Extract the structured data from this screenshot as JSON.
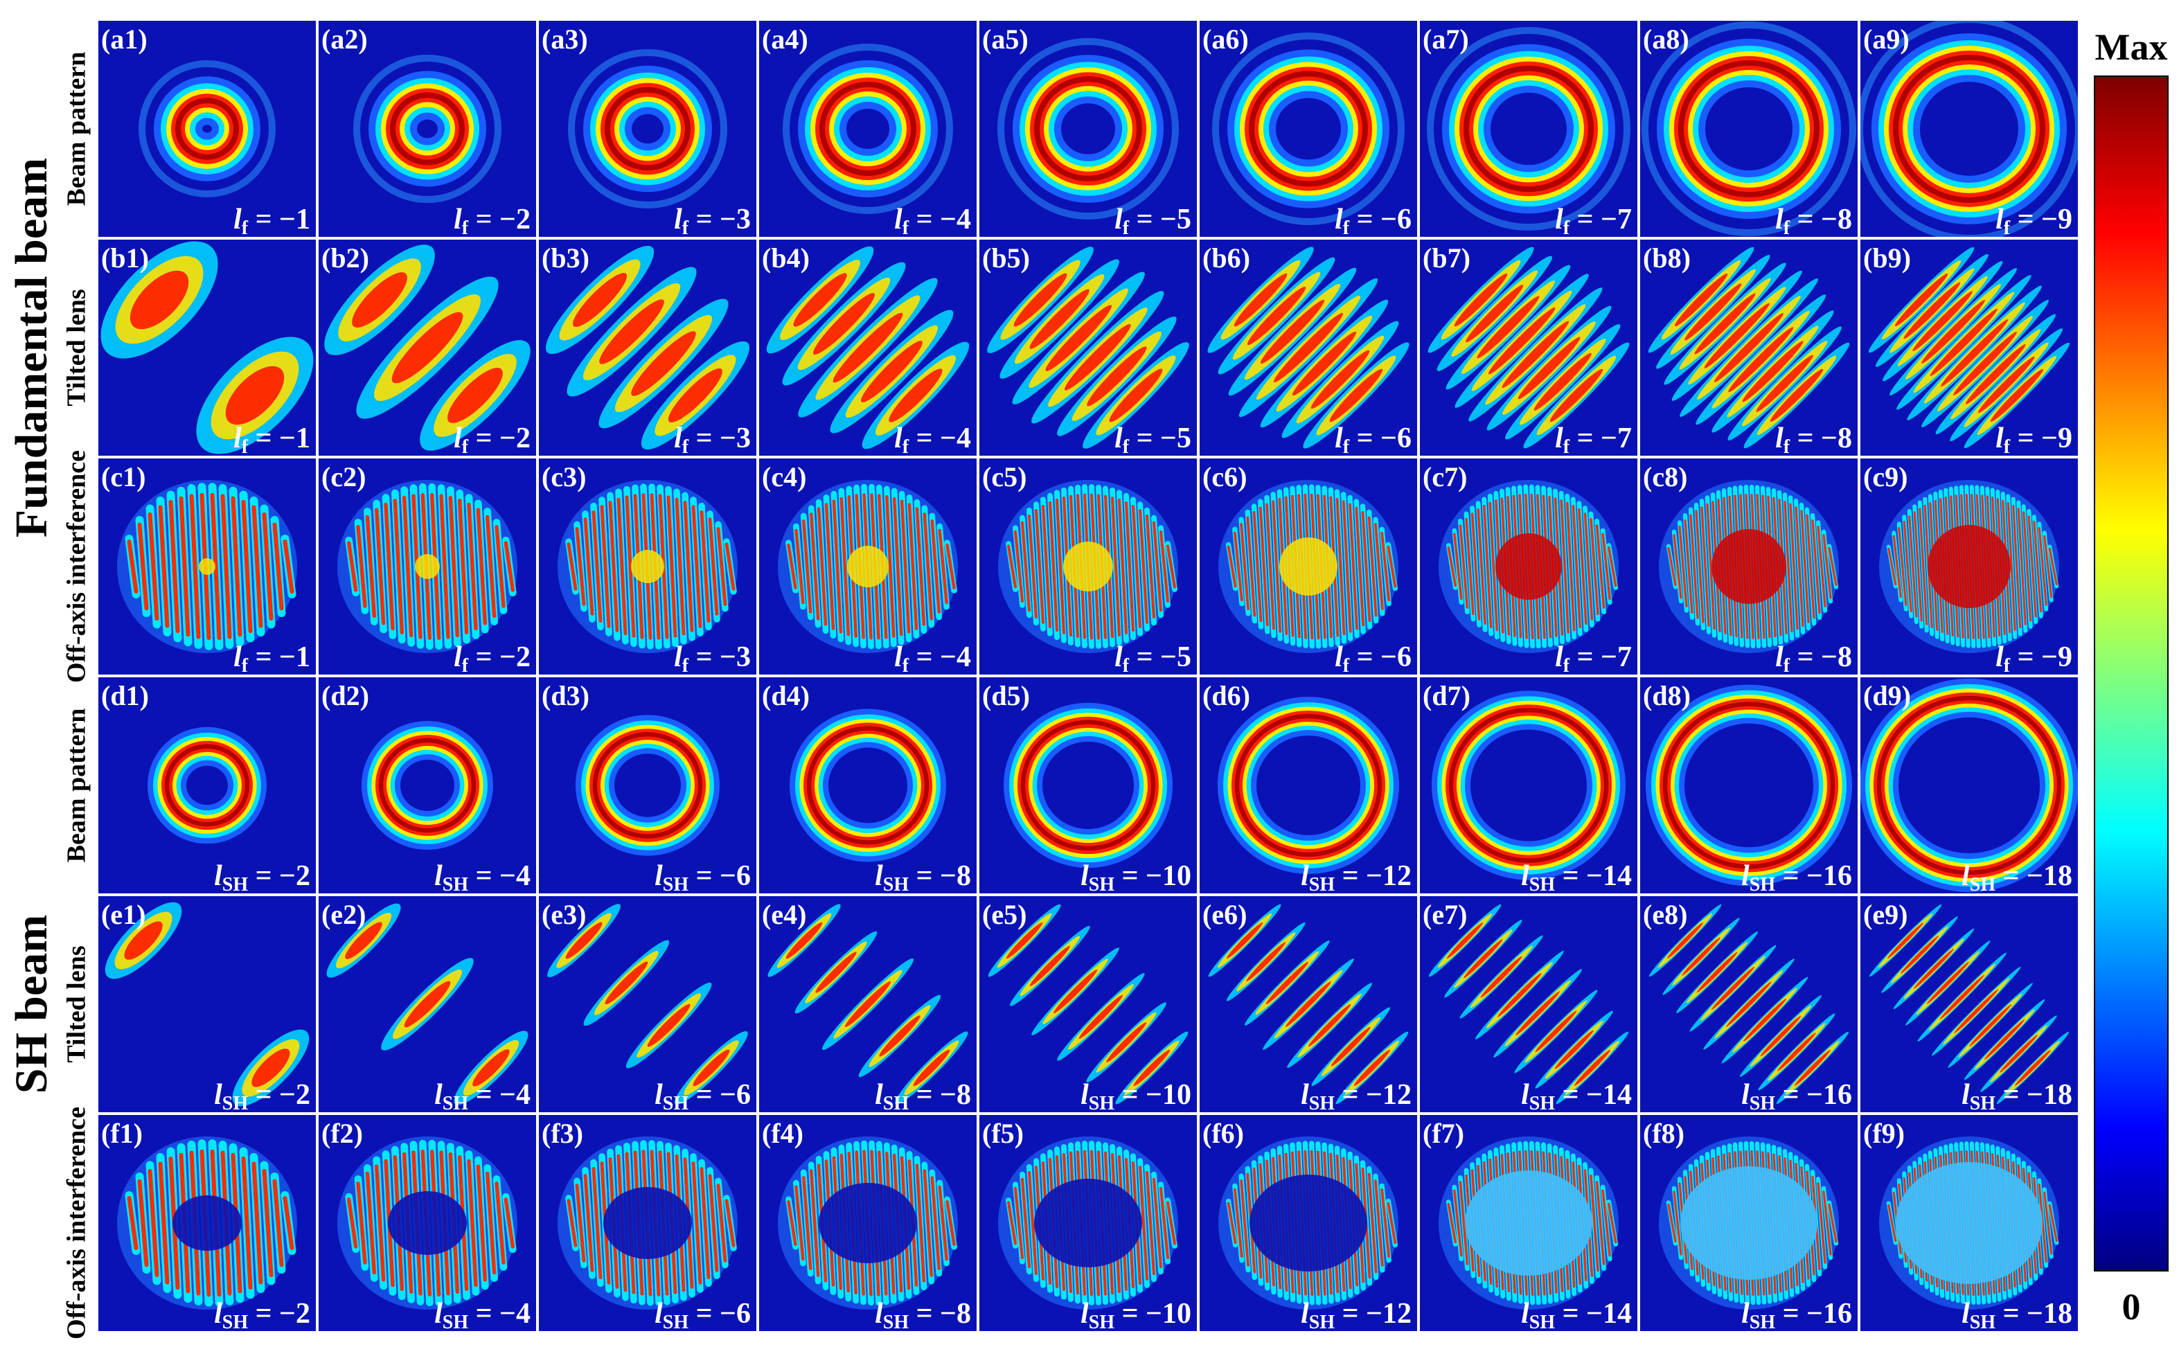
{
  "figure": {
    "groups": [
      {
        "title": "Fundamental beam",
        "rows": [
          {
            "label": "Beam pattern",
            "panels": [
              {
                "tag": "(a1)",
                "symbol": "l",
                "sub": "f",
                "eq": " = −1"
              },
              {
                "tag": "(a2)",
                "symbol": "l",
                "sub": "f",
                "eq": " = −2"
              },
              {
                "tag": "(a3)",
                "symbol": "l",
                "sub": "f",
                "eq": " = −3"
              },
              {
                "tag": "(a4)",
                "symbol": "l",
                "sub": "f",
                "eq": " = −4"
              },
              {
                "tag": "(a5)",
                "symbol": "l",
                "sub": "f",
                "eq": " = −5"
              },
              {
                "tag": "(a6)",
                "symbol": "l",
                "sub": "f",
                "eq": " = −6"
              },
              {
                "tag": "(a7)",
                "symbol": "l",
                "sub": "f",
                "eq": " = −7"
              },
              {
                "tag": "(a8)",
                "symbol": "l",
                "sub": "f",
                "eq": " = −8"
              },
              {
                "tag": "(a9)",
                "symbol": "l",
                "sub": "f",
                "eq": " = −9"
              }
            ]
          },
          {
            "label": "Tilted lens",
            "panels": [
              {
                "tag": "(b1)",
                "symbol": "l",
                "sub": "f",
                "eq": " = −1"
              },
              {
                "tag": "(b2)",
                "symbol": "l",
                "sub": "f",
                "eq": " = −2"
              },
              {
                "tag": "(b3)",
                "symbol": "l",
                "sub": "f",
                "eq": " = −3"
              },
              {
                "tag": "(b4)",
                "symbol": "l",
                "sub": "f",
                "eq": " = −4"
              },
              {
                "tag": "(b5)",
                "symbol": "l",
                "sub": "f",
                "eq": " = −5"
              },
              {
                "tag": "(b6)",
                "symbol": "l",
                "sub": "f",
                "eq": " = −6"
              },
              {
                "tag": "(b7)",
                "symbol": "l",
                "sub": "f",
                "eq": " = −7"
              },
              {
                "tag": "(b8)",
                "symbol": "l",
                "sub": "f",
                "eq": " = −8"
              },
              {
                "tag": "(b9)",
                "symbol": "l",
                "sub": "f",
                "eq": " = −9"
              }
            ]
          },
          {
            "label": "Off-axis interference",
            "panels": [
              {
                "tag": "(c1)",
                "symbol": "l",
                "sub": "f",
                "eq": " = −1"
              },
              {
                "tag": "(c2)",
                "symbol": "l",
                "sub": "f",
                "eq": " = −2"
              },
              {
                "tag": "(c3)",
                "symbol": "l",
                "sub": "f",
                "eq": " = −3"
              },
              {
                "tag": "(c4)",
                "symbol": "l",
                "sub": "f",
                "eq": " = −4"
              },
              {
                "tag": "(c5)",
                "symbol": "l",
                "sub": "f",
                "eq": " = −5"
              },
              {
                "tag": "(c6)",
                "symbol": "l",
                "sub": "f",
                "eq": " = −6"
              },
              {
                "tag": "(c7)",
                "symbol": "l",
                "sub": "f",
                "eq": " = −7"
              },
              {
                "tag": "(c8)",
                "symbol": "l",
                "sub": "f",
                "eq": " = −8"
              },
              {
                "tag": "(c9)",
                "symbol": "l",
                "sub": "f",
                "eq": " = −9"
              }
            ]
          }
        ]
      },
      {
        "title": "SH beam",
        "rows": [
          {
            "label": "Beam pattern",
            "panels": [
              {
                "tag": "(d1)",
                "symbol": "l",
                "sub": "SH",
                "eq": " = −2"
              },
              {
                "tag": "(d2)",
                "symbol": "l",
                "sub": "SH",
                "eq": " = −4"
              },
              {
                "tag": "(d3)",
                "symbol": "l",
                "sub": "SH",
                "eq": " = −6"
              },
              {
                "tag": "(d4)",
                "symbol": "l",
                "sub": "SH",
                "eq": " = −8"
              },
              {
                "tag": "(d5)",
                "symbol": "l",
                "sub": "SH",
                "eq": " = −10"
              },
              {
                "tag": "(d6)",
                "symbol": "l",
                "sub": "SH",
                "eq": " = −12"
              },
              {
                "tag": "(d7)",
                "symbol": "l",
                "sub": "SH",
                "eq": " = −14"
              },
              {
                "tag": "(d8)",
                "symbol": "l",
                "sub": "SH",
                "eq": " = −16"
              },
              {
                "tag": "(d9)",
                "symbol": "l",
                "sub": "SH",
                "eq": " = −18"
              }
            ]
          },
          {
            "label": "Tilted lens",
            "panels": [
              {
                "tag": "(e1)",
                "symbol": "l",
                "sub": "SH",
                "eq": " = −2"
              },
              {
                "tag": "(e2)",
                "symbol": "l",
                "sub": "SH",
                "eq": " = −4"
              },
              {
                "tag": "(e3)",
                "symbol": "l",
                "sub": "SH",
                "eq": " = −6"
              },
              {
                "tag": "(e4)",
                "symbol": "l",
                "sub": "SH",
                "eq": " = −8"
              },
              {
                "tag": "(e5)",
                "symbol": "l",
                "sub": "SH",
                "eq": " = −10"
              },
              {
                "tag": "(e6)",
                "symbol": "l",
                "sub": "SH",
                "eq": " = −12"
              },
              {
                "tag": "(e7)",
                "symbol": "l",
                "sub": "SH",
                "eq": " = −14"
              },
              {
                "tag": "(e8)",
                "symbol": "l",
                "sub": "SH",
                "eq": " = −16"
              },
              {
                "tag": "(e9)",
                "symbol": "l",
                "sub": "SH",
                "eq": " = −18"
              }
            ]
          },
          {
            "label": "Off-axis interference",
            "panels": [
              {
                "tag": "(f1)",
                "symbol": "l",
                "sub": "SH",
                "eq": " = −2"
              },
              {
                "tag": "(f2)",
                "symbol": "l",
                "sub": "SH",
                "eq": " = −4"
              },
              {
                "tag": "(f3)",
                "symbol": "l",
                "sub": "SH",
                "eq": " = −6"
              },
              {
                "tag": "(f4)",
                "symbol": "l",
                "sub": "SH",
                "eq": " = −8"
              },
              {
                "tag": "(f5)",
                "symbol": "l",
                "sub": "SH",
                "eq": " = −10"
              },
              {
                "tag": "(f6)",
                "symbol": "l",
                "sub": "SH",
                "eq": " = −12"
              },
              {
                "tag": "(f7)",
                "symbol": "l",
                "sub": "SH",
                "eq": " = −14"
              },
              {
                "tag": "(f8)",
                "symbol": "l",
                "sub": "SH",
                "eq": " = −16"
              },
              {
                "tag": "(f9)",
                "symbol": "l",
                "sub": "SH",
                "eq": " = −18"
              }
            ]
          }
        ]
      }
    ],
    "colorbar": {
      "max": "Max",
      "min": "0"
    }
  }
}
